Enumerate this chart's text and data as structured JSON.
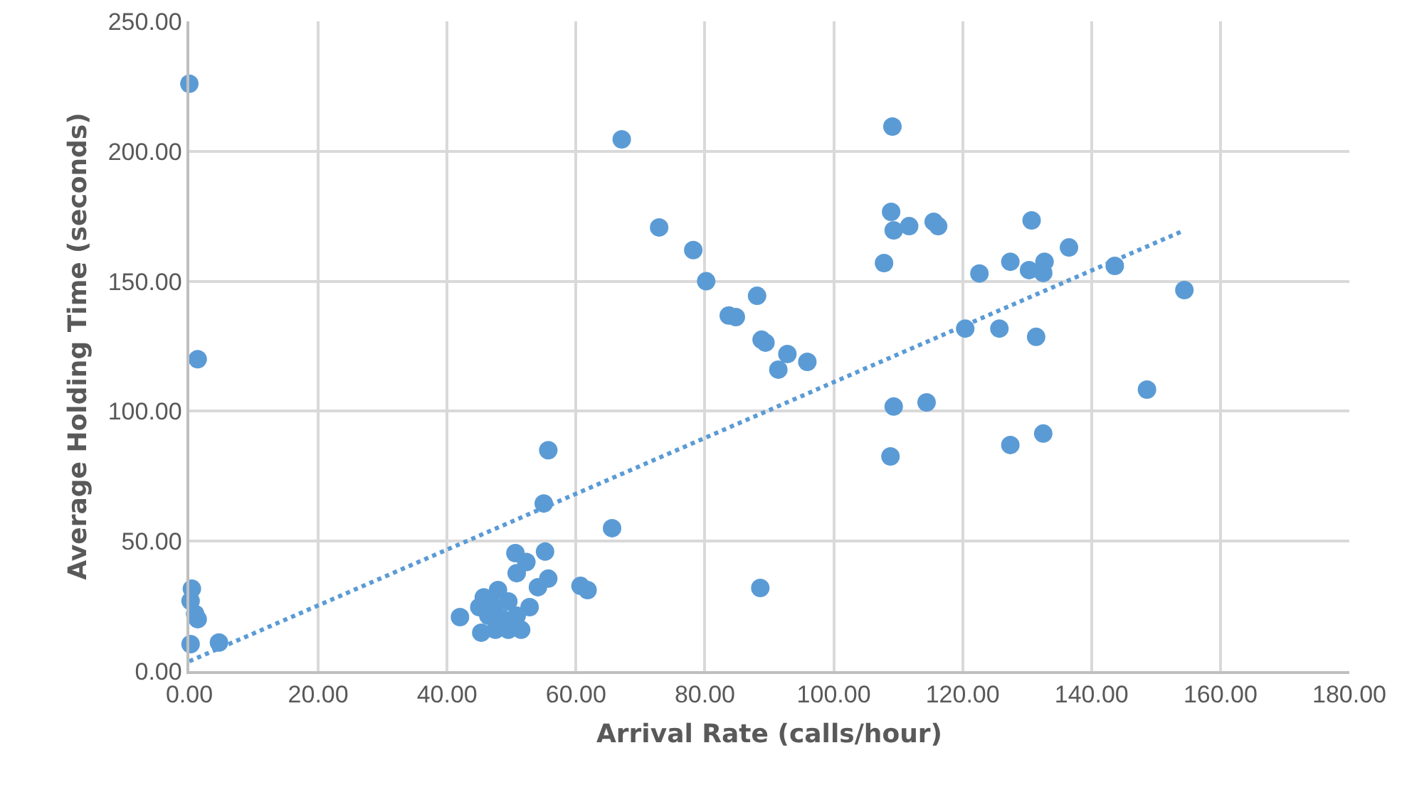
{
  "chart_data": {
    "type": "scatter",
    "xlabel": "Arrival Rate (calls/hour)",
    "ylabel": "Average Holding Time (seconds)",
    "xlim": [
      0,
      180
    ],
    "ylim": [
      0,
      250
    ],
    "xticks": [
      {
        "value": 0,
        "label": "0.00"
      },
      {
        "value": 20,
        "label": "20.00"
      },
      {
        "value": 40,
        "label": "40.00"
      },
      {
        "value": 60,
        "label": "60.00"
      },
      {
        "value": 80,
        "label": "80.00"
      },
      {
        "value": 100,
        "label": "100.00"
      },
      {
        "value": 120,
        "label": "120.00"
      },
      {
        "value": 140,
        "label": "140.00"
      },
      {
        "value": 160,
        "label": "160.00"
      },
      {
        "value": 180,
        "label": "180.00"
      }
    ],
    "yticks": [
      {
        "value": 0,
        "label": "0.00"
      },
      {
        "value": 50,
        "label": "50.00"
      },
      {
        "value": 100,
        "label": "100.00"
      },
      {
        "value": 150,
        "label": "150.00"
      },
      {
        "value": 200,
        "label": "200.00"
      },
      {
        "value": 250,
        "label": "250.00"
      }
    ],
    "grid": true,
    "marker": "circle",
    "series": [
      {
        "type": "scatter",
        "color": "#5b9bd5",
        "x": [
          0,
          1.3,
          0.4,
          0.2,
          0.9,
          1.3,
          0.2,
          4.6,
          42,
          55.7,
          55,
          65.6,
          67.1,
          72.9,
          78.2,
          80.2,
          83.7,
          84.8,
          88.1,
          88.8,
          89.4,
          92.8,
          91.4,
          95.9,
          88.6,
          109.1,
          108.9,
          109.3,
          111.7,
          115.5,
          116.2,
          107.8,
          109.3,
          114.4,
          108.8,
          120.4,
          122.6,
          125.7,
          127.4,
          130.7,
          130.3,
          132.7,
          132.5,
          136.5,
          143.6,
          154.4,
          148.6,
          131.4,
          132.5,
          127.4,
          50.6,
          55.2,
          52.3,
          50.8,
          55.7,
          54.1,
          60.7,
          61.8,
          45.7,
          45,
          47.9,
          49.5,
          52.8,
          45.3,
          47.5,
          49.5,
          51.5,
          46.4,
          48.6,
          50.8,
          47.3
        ],
        "values": [
          226,
          120,
          31.7,
          27,
          22,
          20,
          10.4,
          11,
          20.8,
          85,
          64.5,
          55,
          204.6,
          170.7,
          162,
          150,
          136.8,
          136.2,
          144.4,
          127.5,
          126.4,
          122,
          116,
          119,
          32,
          209.5,
          176.7,
          169.6,
          171.2,
          172.9,
          171.2,
          157,
          101.8,
          103.4,
          82.6,
          131.8,
          153,
          131.8,
          157.5,
          173.4,
          154.3,
          157.5,
          153.2,
          163,
          155.9,
          146.6,
          108.3,
          128.6,
          91.4,
          87,
          45.4,
          46,
          42,
          37.7,
          35.6,
          32.3,
          32.8,
          31.2,
          28.4,
          24.6,
          31.2,
          26.8,
          24.6,
          14.8,
          15.9,
          15.9,
          15.9,
          21.3,
          20.2,
          21.3,
          24.6
        ]
      },
      {
        "type": "line",
        "color": "#5b9bd5",
        "line_style": "dotted",
        "marker": "none",
        "x": [
          0,
          154.4
        ],
        "values": [
          3.8,
          169.6
        ]
      }
    ]
  }
}
